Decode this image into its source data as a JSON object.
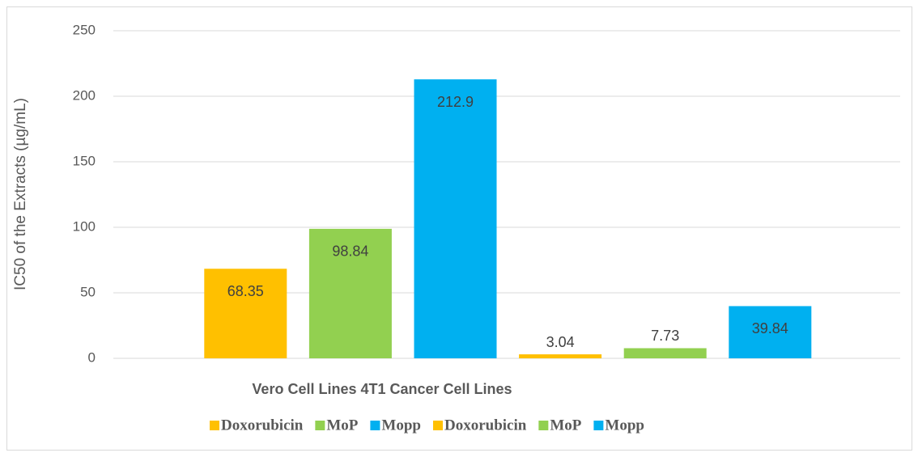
{
  "chart_data": {
    "type": "bar",
    "y_label": "IC50 of the Extracts (µg/mL)",
    "x_label": "Vero Cell Lines 4T1 Cancer Cell Lines",
    "ylim": [
      0,
      250
    ],
    "yticks": [
      0,
      50,
      100,
      150,
      200,
      250
    ],
    "grid": true,
    "series": [
      {
        "name": "Doxorubicin",
        "color": "#ffc000",
        "values": [
          68.35
        ]
      },
      {
        "name": "MoP",
        "color": "#92d050",
        "values": [
          98.84
        ]
      },
      {
        "name": "Mopp",
        "color": "#00b0f0",
        "values": [
          212.9
        ]
      },
      {
        "name": "Doxorubicin",
        "color": "#ffc000",
        "values": [
          3.04
        ]
      },
      {
        "name": "MoP",
        "color": "#92d050",
        "values": [
          7.73
        ]
      },
      {
        "name": "Mopp",
        "color": "#00b0f0",
        "values": [
          39.84
        ]
      }
    ]
  }
}
